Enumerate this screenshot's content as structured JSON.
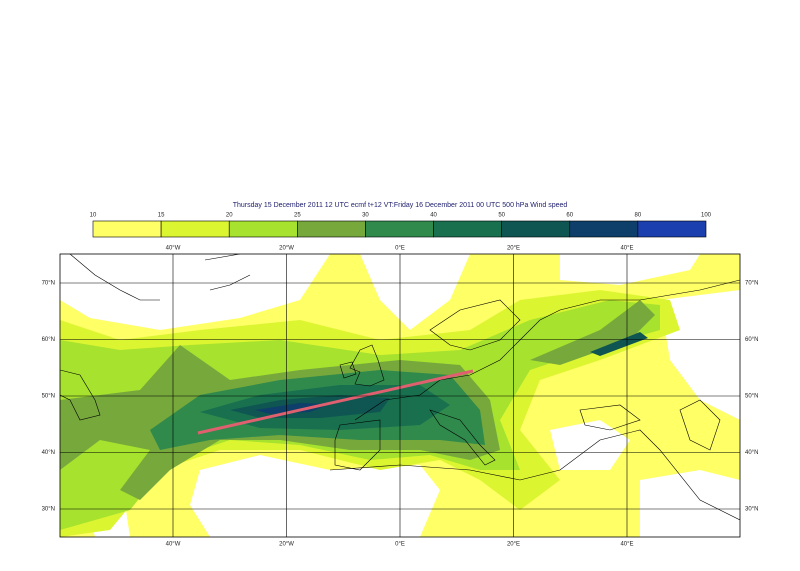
{
  "title": "Thursday 15 December 2011 12 UTC ecmf t+12 VT:Friday 16 December 2011 00 UTC 500 hPa  Wind speed",
  "colorbar": {
    "labels": [
      10,
      15,
      20,
      25,
      30,
      40,
      50,
      60,
      80,
      100
    ],
    "colors": [
      "#ffff66",
      "#dcf531",
      "#a6e22e",
      "#77a83c",
      "#2f8a4c",
      "#18704f",
      "#0f5552",
      "#0d3f6a",
      "#1b3fae"
    ]
  },
  "longitude_labels": [
    "40°W",
    "20°W",
    "0°E",
    "20°E",
    "40°E"
  ],
  "latitude_labels": [
    "70°N",
    "60°N",
    "50°N",
    "40°N",
    "30°N"
  ]
}
